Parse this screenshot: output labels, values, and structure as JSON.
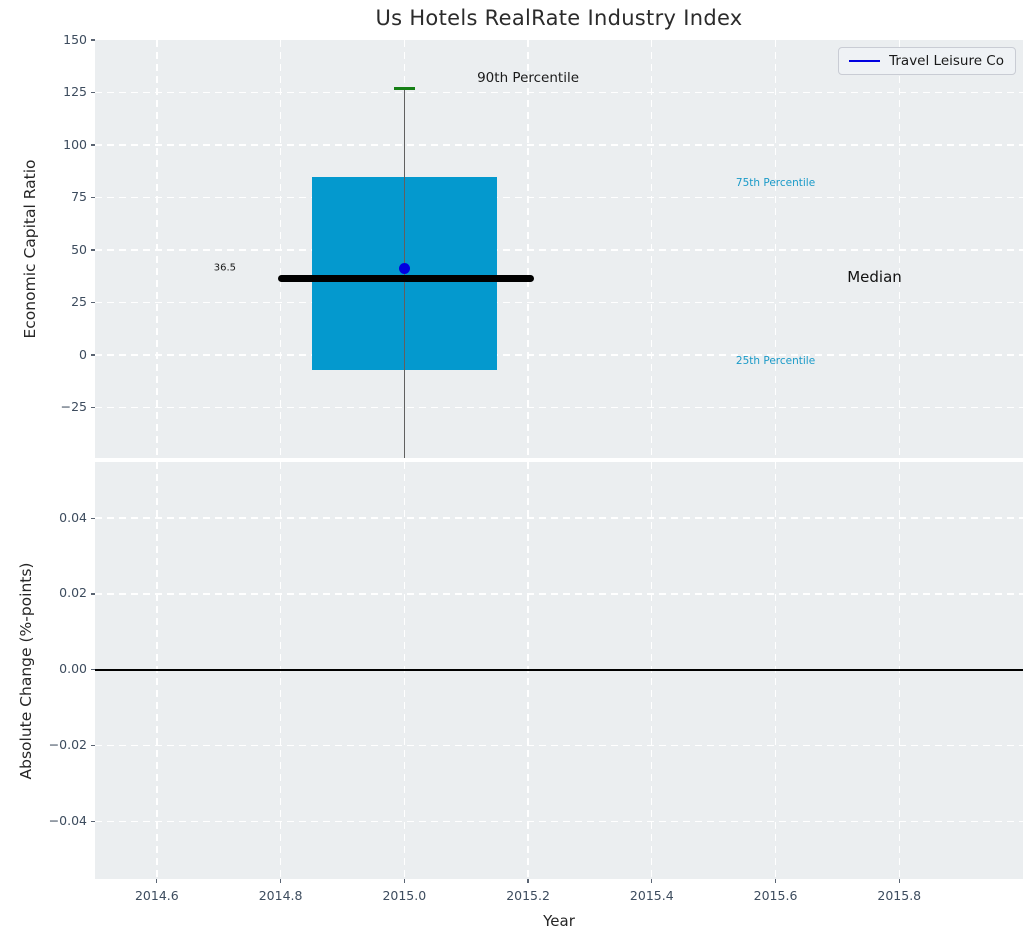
{
  "title": "Us Hotels RealRate Industry Index",
  "legend": {
    "label": "Travel Leisure Co"
  },
  "axes": {
    "top": {
      "ylabel": "Economic Capital Ratio"
    },
    "bottom": {
      "ylabel": "Absolute Change (%-points)",
      "xlabel": "Year"
    }
  },
  "colors": {
    "axes_bg": "#ebeef0",
    "grid": "#ffffff",
    "box_fill": "#0499ce",
    "whisker": "#606060",
    "cap_green": "#157f15",
    "median_black": "#000000",
    "dot_blue": "#0000e0",
    "legend_line_blue": "#0000e0",
    "annotation_cyan": "#1a9ac8",
    "tick_label": "#3d4c5e",
    "zero_line": "#000000"
  },
  "chart_data": [
    {
      "type": "boxplot",
      "panel": "top",
      "title": "Us Hotels RealRate Industry Index",
      "ylabel": "Economic Capital Ratio",
      "series_name": "Travel Leisure Co",
      "legend_position": "upper right",
      "grid": true,
      "xlim": [
        2014.5,
        2016.0
      ],
      "ylim": [
        -49,
        150
      ],
      "yticks": [
        150,
        125,
        100,
        75,
        50,
        25,
        0,
        -25
      ],
      "ytick_labels": [
        "150",
        "125",
        "100",
        "75",
        "50",
        "25",
        "0",
        "−25"
      ],
      "xticks": [
        2014.6,
        2014.8,
        2015.0,
        2015.2,
        2015.4,
        2015.6,
        2015.8
      ],
      "xtick_labels": [],
      "box": {
        "x": 2015.0,
        "box_left": 2014.85,
        "box_right": 2015.15,
        "q1": -7,
        "median": 36.5,
        "q3": 85,
        "p90_whisker": 127,
        "whisker_low_clipped_below_axis": true,
        "median_line_left": 2014.795,
        "median_line_right": 2015.21,
        "company_dot": {
          "x": 2015.0,
          "y": 41
        }
      },
      "annotations": {
        "p90": {
          "text": "90th Percentile",
          "x": 2015.2,
          "y": 132,
          "size": 13.5,
          "color": "#1a1a1a"
        },
        "median_value": {
          "text": "36.5",
          "x": 2014.71,
          "y": 41.5,
          "size": 10,
          "color": "#1a1a1a"
        },
        "p75": {
          "text": "75th Percentile",
          "x": 2015.6,
          "y": 82,
          "size": 10.5,
          "color": "#1a9ac8"
        },
        "median_label": {
          "text": "Median",
          "x": 2015.76,
          "y": 37,
          "size": 15,
          "color": "#111111"
        },
        "p25": {
          "text": "25th Percentile",
          "x": 2015.6,
          "y": -3,
          "size": 10.5,
          "color": "#1a9ac8"
        }
      }
    },
    {
      "type": "line",
      "panel": "bottom",
      "ylabel": "Absolute Change (%-points)",
      "xlabel": "Year",
      "grid": true,
      "xlim": [
        2014.5,
        2016.0
      ],
      "ylim": [
        -0.0552,
        0.0548
      ],
      "yticks": [
        0.04,
        0.02,
        0.0,
        -0.02,
        -0.04
      ],
      "ytick_labels": [
        "0.04",
        "0.02",
        "0.00",
        "−0.02",
        "−0.04"
      ],
      "xticks": [
        2014.6,
        2014.8,
        2015.0,
        2015.2,
        2015.4,
        2015.6,
        2015.8
      ],
      "xtick_labels": [
        "2014.6",
        "2014.8",
        "2015.0",
        "2015.2",
        "2015.4",
        "2015.6",
        "2015.8"
      ],
      "zero_line_y": 0.0,
      "series": []
    }
  ]
}
